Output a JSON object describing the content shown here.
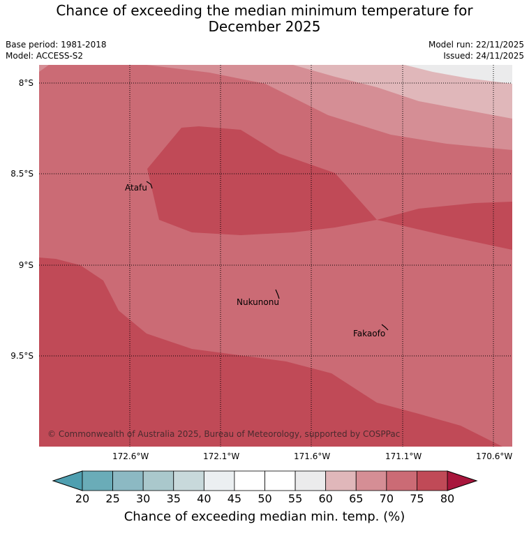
{
  "title": {
    "line1": "Chance of exceeding the median minimum temperature for",
    "line2": "December 2025"
  },
  "meta": {
    "base_period": "Base period: 1981-2018",
    "model": "Model: ACCESS-S2",
    "model_run": "Model run: 22/11/2025",
    "issued": "Issued: 24/11/2025"
  },
  "map": {
    "lat_labels": [
      "8°S",
      "8.5°S",
      "9°S",
      "9.5°S"
    ],
    "lon_labels": [
      "172.6°W",
      "172.1°W",
      "171.6°W",
      "171.1°W",
      "170.6°W"
    ],
    "places": [
      {
        "name": "Atafu"
      },
      {
        "name": "Nukunonu"
      },
      {
        "name": "Fakaofo"
      }
    ],
    "copyright": "© Commonwealth of Australia 2025, Bureau of Meteorology, supported by COSPPac",
    "colors": {
      "c60_65": "#ebebec",
      "c65_70": "#e0b7ba",
      "c70_75": "#d58e95",
      "c75_80a": "#cb6b75",
      "c75_80b": "#c04a57"
    }
  },
  "colorbar": {
    "ticks": [
      "20",
      "25",
      "30",
      "35",
      "40",
      "45",
      "50",
      "55",
      "60",
      "65",
      "70",
      "75",
      "80"
    ],
    "colors": [
      "#6aacb8",
      "#8cb9c3",
      "#aac8cc",
      "#c8d9db",
      "#ebeff1",
      "#ffffff",
      "#ffffff",
      "#ebebec",
      "#e0b7ba",
      "#d58e95",
      "#cb6b75",
      "#c04a57"
    ],
    "low_extend_color": "#4f9fb0",
    "high_extend_color": "#a8163c",
    "label": "Chance of exceeding median min. temp. (%)"
  }
}
